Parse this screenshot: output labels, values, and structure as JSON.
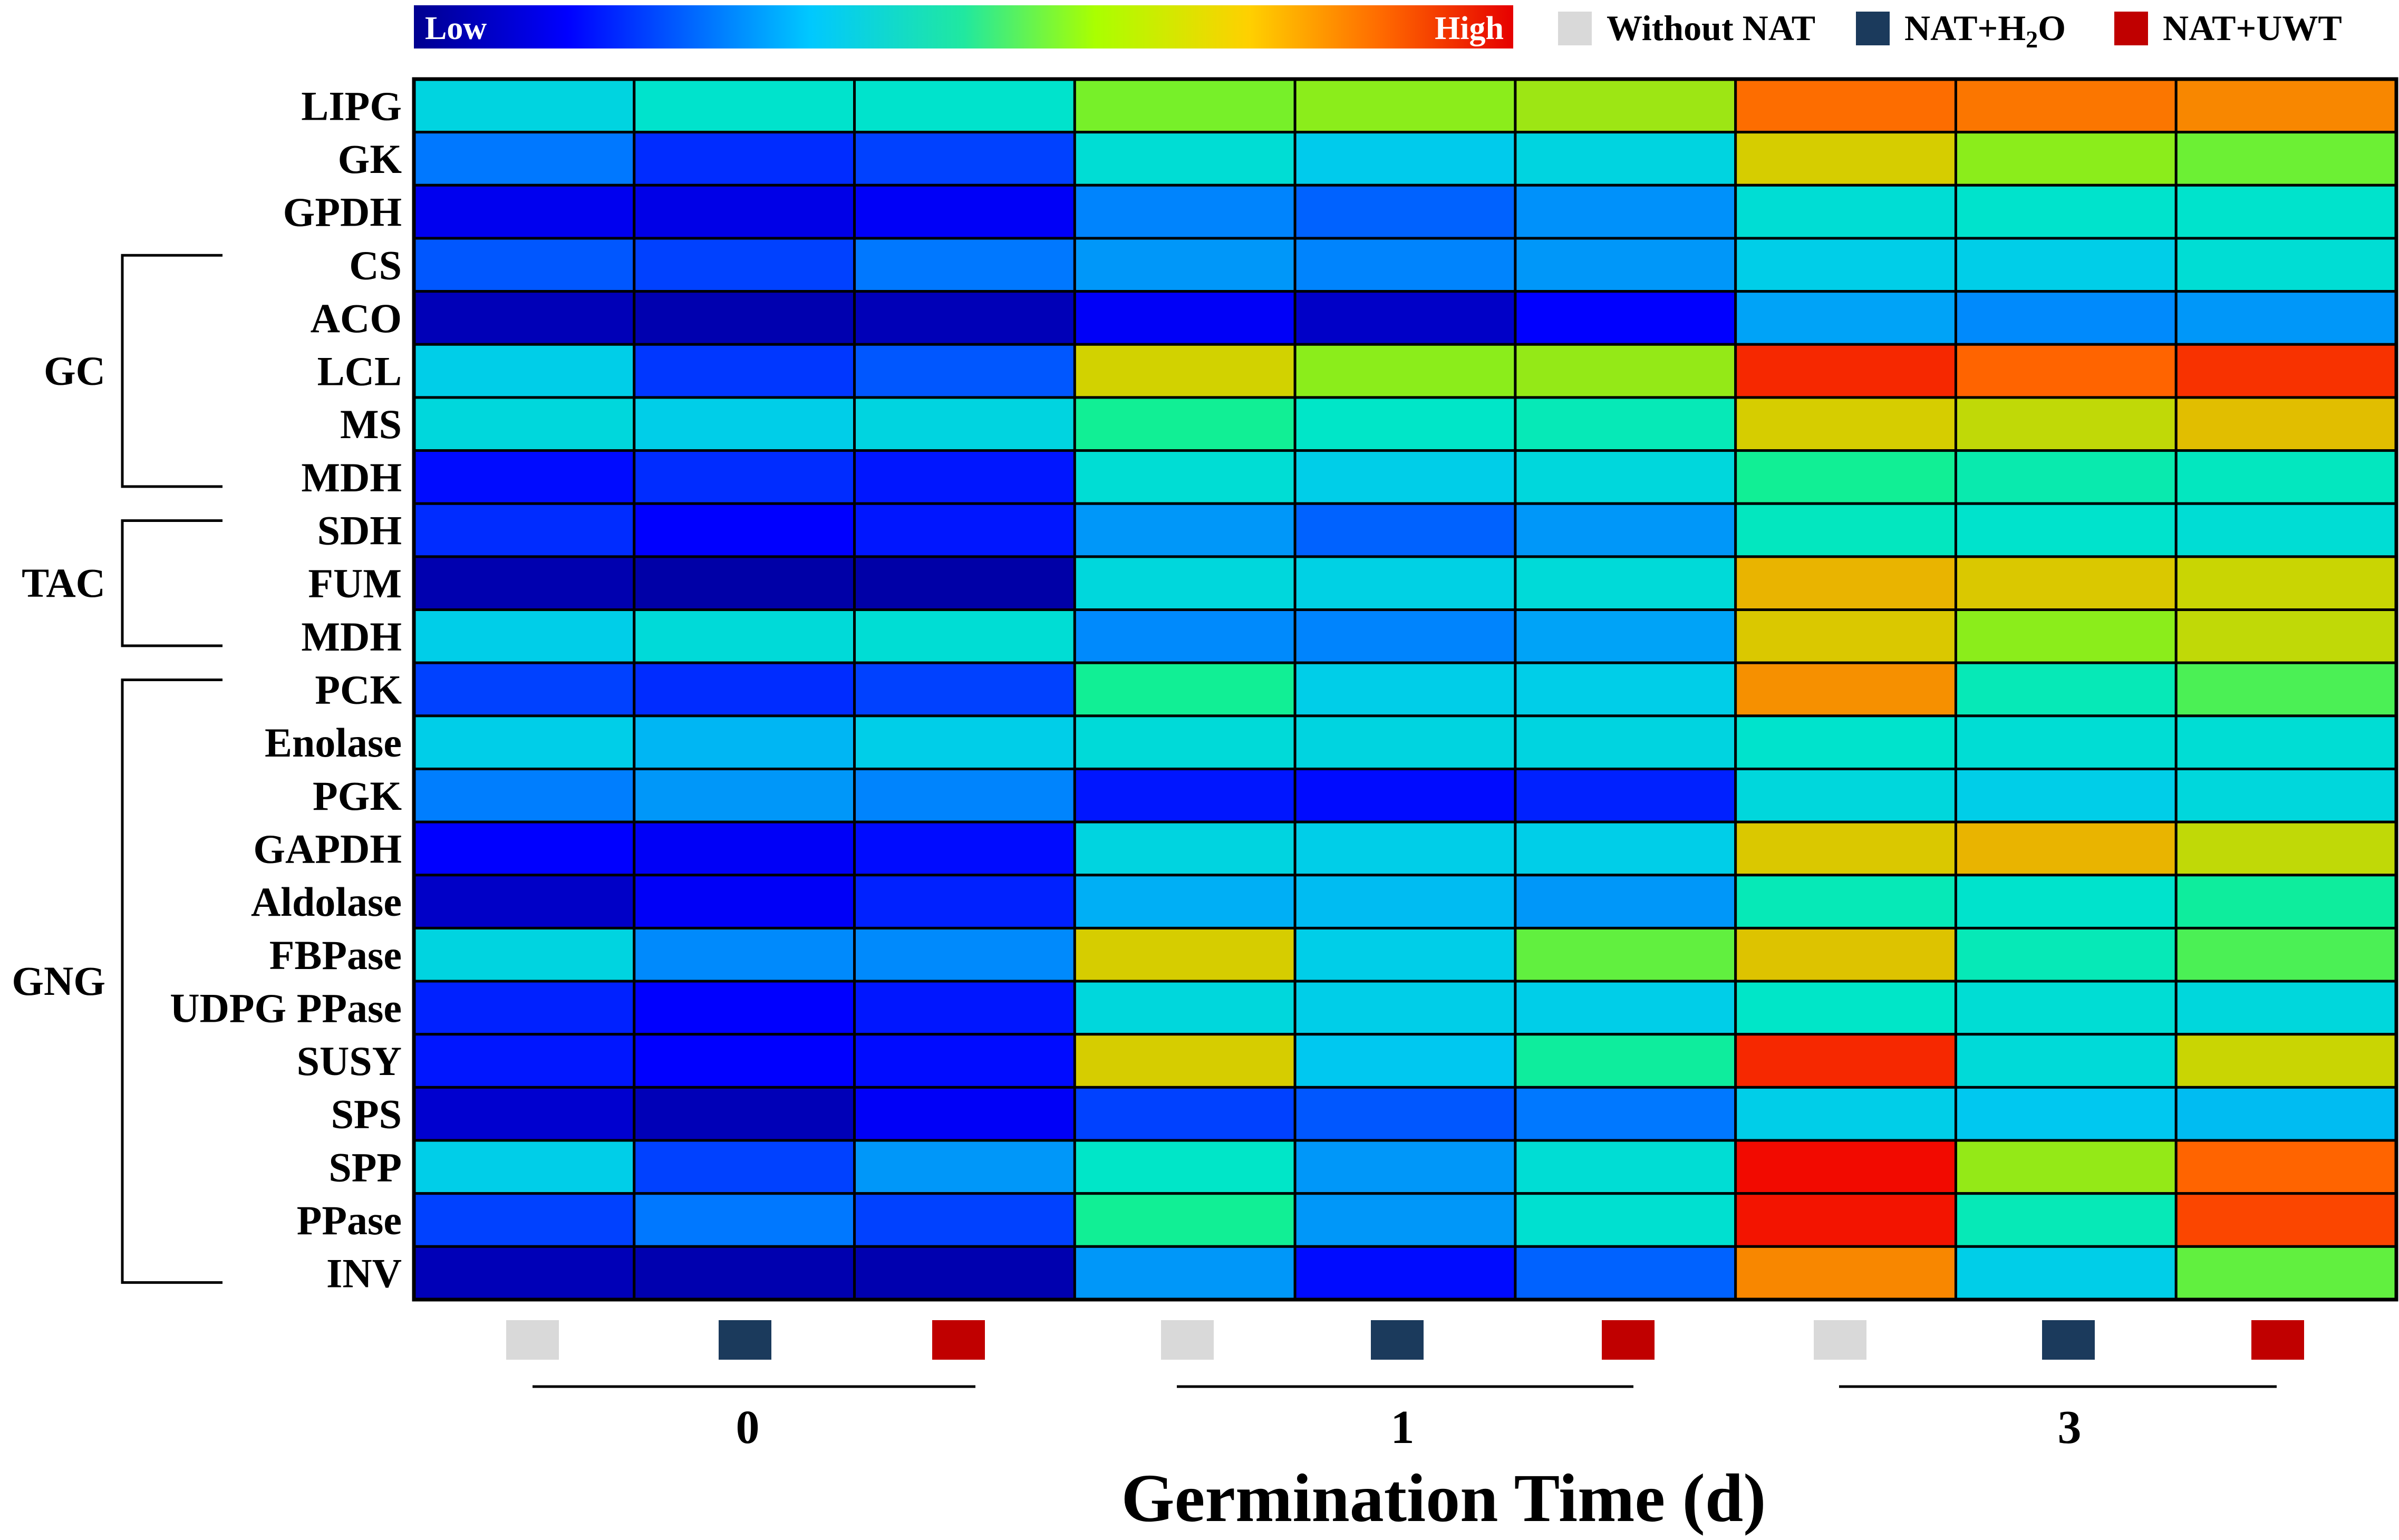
{
  "chart_data": {
    "type": "heatmap",
    "title": "",
    "xlabel": "Germination Time (d)",
    "ylabel": "",
    "colorbar": {
      "low_label": "Low",
      "high_label": "High"
    },
    "legend": {
      "position": "top-right",
      "entries": [
        {
          "label_parts": [
            "Without NAT"
          ],
          "color": "#d9d9d9"
        },
        {
          "label_parts": [
            "NAT+H",
            "2",
            "O"
          ],
          "color": "#1b3a5c"
        },
        {
          "label_parts": [
            "NAT+UWT"
          ],
          "color": "#c00000"
        }
      ]
    },
    "groups": [
      {
        "label": "0",
        "columns": [
          {
            "treatment": "Without NAT",
            "color": "#d9d9d9"
          },
          {
            "treatment": "NAT+H2O",
            "color": "#1b3a5c"
          },
          {
            "treatment": "NAT+UWT",
            "color": "#c00000"
          }
        ]
      },
      {
        "label": "1",
        "columns": [
          {
            "treatment": "Without NAT",
            "color": "#d9d9d9"
          },
          {
            "treatment": "NAT+H2O",
            "color": "#1b3a5c"
          },
          {
            "treatment": "NAT+UWT",
            "color": "#c00000"
          }
        ]
      },
      {
        "label": "3",
        "columns": [
          {
            "treatment": "Without NAT",
            "color": "#d9d9d9"
          },
          {
            "treatment": "NAT+H2O",
            "color": "#1b3a5c"
          },
          {
            "treatment": "NAT+UWT",
            "color": "#c00000"
          }
        ]
      }
    ],
    "rows": [
      "LIPG",
      "GK",
      "GPDH",
      "CS",
      "ACO",
      "LCL",
      "MS",
      "MDH",
      "SDH",
      "FUM",
      "MDH",
      "PCK",
      "Enolase",
      "PGK",
      "GAPDH",
      "Aldolase",
      "FBPase",
      "UDPG PPase",
      "SUSY",
      "SPS",
      "SPP",
      "PPase",
      "INV"
    ],
    "pathway_groups": [
      {
        "label": "GC",
        "first_row": 3,
        "last_row": 7
      },
      {
        "label": "TAC",
        "first_row": 8,
        "last_row": 10
      },
      {
        "label": "GNG",
        "first_row": 11,
        "last_row": 22
      }
    ],
    "value_range": [
      0,
      1
    ],
    "values": [
      [
        0.42,
        0.47,
        0.47,
        0.64,
        0.66,
        0.68,
        0.89,
        0.88,
        0.86
      ],
      [
        0.25,
        0.18,
        0.2,
        0.45,
        0.39,
        0.42,
        0.75,
        0.66,
        0.63
      ],
      [
        0.12,
        0.11,
        0.13,
        0.27,
        0.23,
        0.29,
        0.45,
        0.47,
        0.47
      ],
      [
        0.22,
        0.2,
        0.25,
        0.3,
        0.27,
        0.3,
        0.4,
        0.4,
        0.45
      ],
      [
        0.05,
        0.04,
        0.05,
        0.13,
        0.07,
        0.14,
        0.32,
        0.28,
        0.3
      ],
      [
        0.4,
        0.19,
        0.22,
        0.74,
        0.66,
        0.67,
        0.96,
        0.9,
        0.95
      ],
      [
        0.43,
        0.4,
        0.42,
        0.54,
        0.48,
        0.5,
        0.75,
        0.72,
        0.78
      ],
      [
        0.15,
        0.18,
        0.16,
        0.45,
        0.4,
        0.43,
        0.54,
        0.51,
        0.49
      ],
      [
        0.18,
        0.14,
        0.16,
        0.3,
        0.23,
        0.3,
        0.49,
        0.47,
        0.45
      ],
      [
        0.04,
        0.03,
        0.03,
        0.43,
        0.41,
        0.44,
        0.8,
        0.76,
        0.73
      ],
      [
        0.4,
        0.44,
        0.45,
        0.28,
        0.27,
        0.32,
        0.76,
        0.66,
        0.72
      ],
      [
        0.2,
        0.18,
        0.2,
        0.54,
        0.4,
        0.4,
        0.85,
        0.5,
        0.6
      ],
      [
        0.4,
        0.35,
        0.4,
        0.44,
        0.42,
        0.42,
        0.47,
        0.45,
        0.45
      ],
      [
        0.26,
        0.3,
        0.27,
        0.16,
        0.15,
        0.17,
        0.43,
        0.4,
        0.43
      ],
      [
        0.14,
        0.13,
        0.15,
        0.42,
        0.4,
        0.4,
        0.76,
        0.8,
        0.72
      ],
      [
        0.07,
        0.13,
        0.17,
        0.34,
        0.36,
        0.3,
        0.5,
        0.47,
        0.53
      ],
      [
        0.42,
        0.28,
        0.28,
        0.75,
        0.4,
        0.62,
        0.77,
        0.5,
        0.6
      ],
      [
        0.17,
        0.14,
        0.16,
        0.43,
        0.4,
        0.4,
        0.48,
        0.45,
        0.43
      ],
      [
        0.16,
        0.14,
        0.15,
        0.75,
        0.38,
        0.53,
        0.96,
        0.44,
        0.73
      ],
      [
        0.08,
        0.05,
        0.13,
        0.2,
        0.22,
        0.25,
        0.4,
        0.38,
        0.36
      ],
      [
        0.4,
        0.2,
        0.3,
        0.48,
        0.3,
        0.45,
        0.99,
        0.67,
        0.9
      ],
      [
        0.2,
        0.25,
        0.2,
        0.54,
        0.3,
        0.46,
        0.98,
        0.5,
        0.93
      ],
      [
        0.05,
        0.04,
        0.04,
        0.3,
        0.15,
        0.23,
        0.86,
        0.4,
        0.62
      ]
    ]
  }
}
